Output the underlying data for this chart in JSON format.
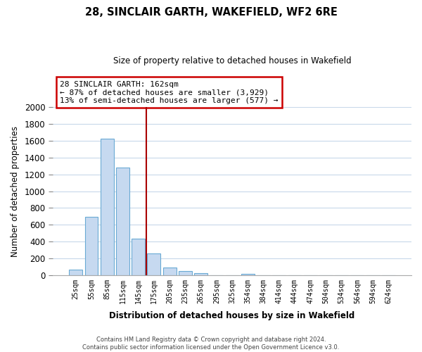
{
  "title": "28, SINCLAIR GARTH, WAKEFIELD, WF2 6RE",
  "subtitle": "Size of property relative to detached houses in Wakefield",
  "xlabel": "Distribution of detached houses by size in Wakefield",
  "ylabel": "Number of detached properties",
  "bar_labels": [
    "25sqm",
    "55sqm",
    "85sqm",
    "115sqm",
    "145sqm",
    "175sqm",
    "205sqm",
    "235sqm",
    "265sqm",
    "295sqm",
    "325sqm",
    "354sqm",
    "384sqm",
    "414sqm",
    "444sqm",
    "474sqm",
    "504sqm",
    "534sqm",
    "564sqm",
    "594sqm",
    "624sqm"
  ],
  "bar_values": [
    65,
    695,
    1630,
    1280,
    435,
    255,
    90,
    50,
    25,
    0,
    0,
    15,
    0,
    0,
    0,
    0,
    0,
    0,
    0,
    0,
    0
  ],
  "bar_color": "#c6d9f0",
  "bar_edge_color": "#6aaad4",
  "ylim": [
    0,
    2000
  ],
  "yticks": [
    0,
    200,
    400,
    600,
    800,
    1000,
    1200,
    1400,
    1600,
    1800,
    2000
  ],
  "property_line_x": 4.5,
  "property_line_color": "#aa0000",
  "annotation_title": "28 SINCLAIR GARTH: 162sqm",
  "annotation_line1": "← 87% of detached houses are smaller (3,929)",
  "annotation_line2": "13% of semi-detached houses are larger (577) →",
  "annotation_box_color": "#ffffff",
  "annotation_box_edge_color": "#cc0000",
  "footer_line1": "Contains HM Land Registry data © Crown copyright and database right 2024.",
  "footer_line2": "Contains public sector information licensed under the Open Government Licence v3.0.",
  "background_color": "#ffffff",
  "grid_color": "#c8d8ea"
}
